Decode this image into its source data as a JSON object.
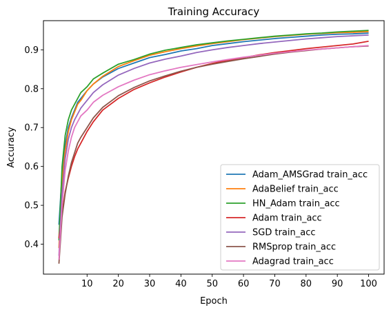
{
  "chart_data": {
    "type": "line",
    "title": "Training Accuracy",
    "xlabel": "Epoch",
    "ylabel": "Accuracy",
    "xlim": [
      -3.95,
      104.95
    ],
    "ylim": [
      0.323,
      0.975
    ],
    "xticks": [
      10,
      20,
      30,
      40,
      50,
      60,
      70,
      80,
      90,
      100
    ],
    "yticks": [
      0.4,
      0.5,
      0.6,
      0.7,
      0.8,
      0.9
    ],
    "ytick_labels": [
      "0.4",
      "0.5",
      "0.6",
      "0.7",
      "0.8",
      "0.9"
    ],
    "grid": false,
    "legend_position": "lower-right",
    "series": [
      {
        "name": "Adam_AMSGrad train_acc",
        "color": "#1f77b4",
        "points": [
          [
            1,
            0.45
          ],
          [
            2,
            0.58
          ],
          [
            3,
            0.655
          ],
          [
            4,
            0.7
          ],
          [
            5,
            0.725
          ],
          [
            6,
            0.745
          ],
          [
            7,
            0.765
          ],
          [
            8,
            0.775
          ],
          [
            10,
            0.795
          ],
          [
            12,
            0.812
          ],
          [
            15,
            0.83
          ],
          [
            20,
            0.852
          ],
          [
            25,
            0.866
          ],
          [
            30,
            0.88
          ],
          [
            35,
            0.888
          ],
          [
            40,
            0.897
          ],
          [
            45,
            0.903
          ],
          [
            50,
            0.911
          ],
          [
            55,
            0.916
          ],
          [
            60,
            0.921
          ],
          [
            65,
            0.925
          ],
          [
            70,
            0.929
          ],
          [
            75,
            0.932
          ],
          [
            80,
            0.935
          ],
          [
            85,
            0.938
          ],
          [
            90,
            0.94
          ],
          [
            95,
            0.941
          ],
          [
            100,
            0.943
          ]
        ]
      },
      {
        "name": "AdaBelief train_acc",
        "color": "#ff7f0e",
        "points": [
          [
            1,
            0.39
          ],
          [
            2,
            0.56
          ],
          [
            3,
            0.64
          ],
          [
            4,
            0.69
          ],
          [
            5,
            0.72
          ],
          [
            6,
            0.74
          ],
          [
            7,
            0.76
          ],
          [
            8,
            0.77
          ],
          [
            10,
            0.795
          ],
          [
            12,
            0.812
          ],
          [
            15,
            0.832
          ],
          [
            20,
            0.857
          ],
          [
            25,
            0.872
          ],
          [
            30,
            0.886
          ],
          [
            35,
            0.895
          ],
          [
            40,
            0.903
          ],
          [
            45,
            0.91
          ],
          [
            50,
            0.916
          ],
          [
            55,
            0.921
          ],
          [
            60,
            0.926
          ],
          [
            65,
            0.93
          ],
          [
            70,
            0.934
          ],
          [
            75,
            0.937
          ],
          [
            80,
            0.94
          ],
          [
            85,
            0.942
          ],
          [
            90,
            0.944
          ],
          [
            95,
            0.945
          ],
          [
            100,
            0.947
          ]
        ]
      },
      {
        "name": "HN_Adam train_acc",
        "color": "#2ca02c",
        "points": [
          [
            1,
            0.41
          ],
          [
            2,
            0.6
          ],
          [
            3,
            0.68
          ],
          [
            4,
            0.72
          ],
          [
            5,
            0.745
          ],
          [
            6,
            0.76
          ],
          [
            7,
            0.775
          ],
          [
            8,
            0.79
          ],
          [
            10,
            0.805
          ],
          [
            12,
            0.825
          ],
          [
            15,
            0.84
          ],
          [
            20,
            0.863
          ],
          [
            25,
            0.875
          ],
          [
            30,
            0.889
          ],
          [
            35,
            0.899
          ],
          [
            40,
            0.906
          ],
          [
            45,
            0.913
          ],
          [
            50,
            0.918
          ],
          [
            55,
            0.923
          ],
          [
            60,
            0.927
          ],
          [
            65,
            0.931
          ],
          [
            70,
            0.935
          ],
          [
            75,
            0.938
          ],
          [
            80,
            0.941
          ],
          [
            85,
            0.943
          ],
          [
            90,
            0.946
          ],
          [
            95,
            0.948
          ],
          [
            100,
            0.95
          ]
        ]
      },
      {
        "name": "Adam train_acc",
        "color": "#d62728",
        "points": [
          [
            1,
            0.415
          ],
          [
            2,
            0.48
          ],
          [
            3,
            0.535
          ],
          [
            4,
            0.57
          ],
          [
            5,
            0.6
          ],
          [
            6,
            0.625
          ],
          [
            7,
            0.645
          ],
          [
            8,
            0.66
          ],
          [
            10,
            0.69
          ],
          [
            12,
            0.715
          ],
          [
            15,
            0.745
          ],
          [
            20,
            0.775
          ],
          [
            25,
            0.798
          ],
          [
            30,
            0.815
          ],
          [
            35,
            0.83
          ],
          [
            40,
            0.843
          ],
          [
            45,
            0.855
          ],
          [
            50,
            0.865
          ],
          [
            55,
            0.873
          ],
          [
            60,
            0.88
          ],
          [
            65,
            0.887
          ],
          [
            70,
            0.893
          ],
          [
            75,
            0.898
          ],
          [
            80,
            0.903
          ],
          [
            85,
            0.907
          ],
          [
            90,
            0.911
          ],
          [
            95,
            0.915
          ],
          [
            100,
            0.922
          ]
        ]
      },
      {
        "name": "SGD train_acc",
        "color": "#9467bd",
        "points": [
          [
            1,
            0.37
          ],
          [
            2,
            0.53
          ],
          [
            3,
            0.62
          ],
          [
            4,
            0.67
          ],
          [
            5,
            0.7
          ],
          [
            6,
            0.72
          ],
          [
            7,
            0.735
          ],
          [
            8,
            0.75
          ],
          [
            10,
            0.77
          ],
          [
            12,
            0.79
          ],
          [
            15,
            0.81
          ],
          [
            20,
            0.835
          ],
          [
            25,
            0.852
          ],
          [
            30,
            0.866
          ],
          [
            35,
            0.876
          ],
          [
            40,
            0.884
          ],
          [
            45,
            0.893
          ],
          [
            50,
            0.9
          ],
          [
            55,
            0.906
          ],
          [
            60,
            0.911
          ],
          [
            65,
            0.916
          ],
          [
            70,
            0.92
          ],
          [
            75,
            0.924
          ],
          [
            80,
            0.928
          ],
          [
            85,
            0.931
          ],
          [
            90,
            0.934
          ],
          [
            95,
            0.936
          ],
          [
            100,
            0.938
          ]
        ]
      },
      {
        "name": "RMSprop train_acc",
        "color": "#8c564b",
        "points": [
          [
            1,
            0.35
          ],
          [
            2,
            0.47
          ],
          [
            3,
            0.53
          ],
          [
            4,
            0.575
          ],
          [
            5,
            0.61
          ],
          [
            6,
            0.635
          ],
          [
            7,
            0.66
          ],
          [
            8,
            0.675
          ],
          [
            10,
            0.7
          ],
          [
            12,
            0.725
          ],
          [
            15,
            0.752
          ],
          [
            20,
            0.782
          ],
          [
            25,
            0.803
          ],
          [
            30,
            0.82
          ],
          [
            35,
            0.833
          ],
          [
            40,
            0.845
          ],
          [
            45,
            0.855
          ],
          [
            50,
            0.863
          ],
          [
            55,
            0.87
          ],
          [
            60,
            0.877
          ],
          [
            65,
            0.883
          ],
          [
            70,
            0.889
          ],
          [
            75,
            0.894
          ],
          [
            80,
            0.898
          ],
          [
            85,
            0.902
          ],
          [
            90,
            0.905
          ],
          [
            95,
            0.908
          ],
          [
            100,
            0.91
          ]
        ]
      },
      {
        "name": "Adagrad train_acc",
        "color": "#e377c2",
        "points": [
          [
            1,
            0.36
          ],
          [
            2,
            0.5
          ],
          [
            3,
            0.59
          ],
          [
            4,
            0.64
          ],
          [
            5,
            0.675
          ],
          [
            6,
            0.7
          ],
          [
            7,
            0.715
          ],
          [
            8,
            0.73
          ],
          [
            10,
            0.745
          ],
          [
            12,
            0.765
          ],
          [
            15,
            0.783
          ],
          [
            20,
            0.805
          ],
          [
            25,
            0.822
          ],
          [
            30,
            0.836
          ],
          [
            35,
            0.846
          ],
          [
            40,
            0.855
          ],
          [
            45,
            0.862
          ],
          [
            50,
            0.869
          ],
          [
            55,
            0.875
          ],
          [
            60,
            0.881
          ],
          [
            65,
            0.886
          ],
          [
            70,
            0.891
          ],
          [
            75,
            0.895
          ],
          [
            80,
            0.899
          ],
          [
            85,
            0.902
          ],
          [
            90,
            0.905
          ],
          [
            95,
            0.908
          ],
          [
            100,
            0.911
          ]
        ]
      }
    ]
  }
}
